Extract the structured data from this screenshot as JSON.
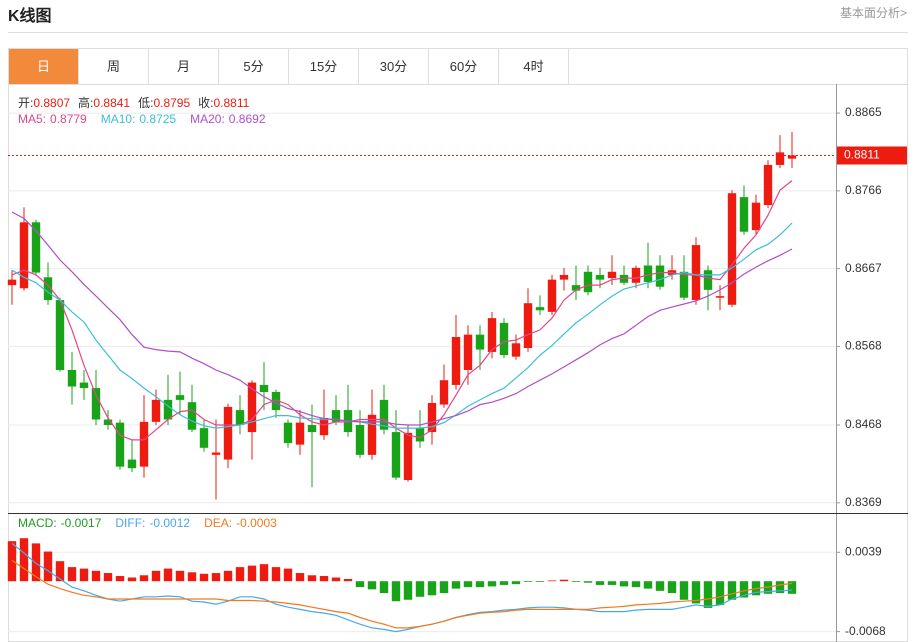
{
  "header": {
    "title": "K线图",
    "link": "基本面分析>"
  },
  "tabs": [
    "日",
    "周",
    "月",
    "5分",
    "15分",
    "30分",
    "60分",
    "4时"
  ],
  "active_tab": 0,
  "chart_data": [
    {
      "type": "candlestick",
      "ohlc_labels": [
        "开:",
        "高:",
        "低:",
        "收:"
      ],
      "up_color": "#ee1c10",
      "down_color": "#18a318",
      "ohlc": [
        [
          0.8646,
          0.8665,
          0.8621,
          0.8653
        ],
        [
          0.8642,
          0.8745,
          0.8639,
          0.8726
        ],
        [
          0.8726,
          0.8729,
          0.8659,
          0.8662
        ],
        [
          0.8656,
          0.8675,
          0.8621,
          0.8627
        ],
        [
          0.8627,
          0.863,
          0.8536,
          0.8538
        ],
        [
          0.8538,
          0.8561,
          0.8494,
          0.8517
        ],
        [
          0.8522,
          0.8538,
          0.85,
          0.8515
        ],
        [
          0.8515,
          0.8538,
          0.8468,
          0.8475
        ],
        [
          0.8475,
          0.8487,
          0.8462,
          0.8468
        ],
        [
          0.8471,
          0.8475,
          0.8411,
          0.8415
        ],
        [
          0.8424,
          0.8449,
          0.8408,
          0.8413
        ],
        [
          0.8415,
          0.8506,
          0.8401,
          0.8472
        ],
        [
          0.8472,
          0.8513,
          0.8468,
          0.85
        ],
        [
          0.85,
          0.8532,
          0.8468,
          0.8475
        ],
        [
          0.8506,
          0.8536,
          0.8481,
          0.85
        ],
        [
          0.8497,
          0.8519,
          0.8459,
          0.8462
        ],
        [
          0.8464,
          0.8475,
          0.8434,
          0.8439
        ],
        [
          0.843,
          0.8475,
          0.8373,
          0.8433
        ],
        [
          0.8424,
          0.8495,
          0.8413,
          0.8491
        ],
        [
          0.8487,
          0.8506,
          0.8456,
          0.8468
        ],
        [
          0.8459,
          0.8525,
          0.8424,
          0.8522
        ],
        [
          0.8519,
          0.8548,
          0.8487,
          0.851
        ],
        [
          0.851,
          0.8513,
          0.8477,
          0.8487
        ],
        [
          0.8471,
          0.8475,
          0.8439,
          0.8445
        ],
        [
          0.8443,
          0.8487,
          0.843,
          0.8471
        ],
        [
          0.8468,
          0.8494,
          0.8389,
          0.8459
        ],
        [
          0.8455,
          0.8513,
          0.8449,
          0.8477
        ],
        [
          0.8487,
          0.8506,
          0.8468,
          0.8472
        ],
        [
          0.8487,
          0.8519,
          0.8453,
          0.8459
        ],
        [
          0.8468,
          0.8487,
          0.8426,
          0.843
        ],
        [
          0.843,
          0.8513,
          0.8424,
          0.8481
        ],
        [
          0.85,
          0.8519,
          0.8456,
          0.8462
        ],
        [
          0.8459,
          0.8487,
          0.8398,
          0.8401
        ],
        [
          0.8398,
          0.8468,
          0.8396,
          0.8458
        ],
        [
          0.8464,
          0.8487,
          0.8439,
          0.8447
        ],
        [
          0.8459,
          0.8506,
          0.8443,
          0.8496
        ],
        [
          0.8494,
          0.8545,
          0.849,
          0.8525
        ],
        [
          0.8519,
          0.8608,
          0.8513,
          0.858
        ],
        [
          0.8538,
          0.8595,
          0.8519,
          0.8583
        ],
        [
          0.8583,
          0.8595,
          0.8538,
          0.8564
        ],
        [
          0.8561,
          0.8612,
          0.8553,
          0.8604
        ],
        [
          0.8598,
          0.8604,
          0.8553,
          0.8557
        ],
        [
          0.8555,
          0.8583,
          0.8551,
          0.8572
        ],
        [
          0.8566,
          0.8642,
          0.8561,
          0.8623
        ],
        [
          0.8618,
          0.8633,
          0.8608,
          0.8614
        ],
        [
          0.8612,
          0.8659,
          0.8608,
          0.8653
        ],
        [
          0.8653,
          0.8668,
          0.8639,
          0.8659
        ],
        [
          0.8646,
          0.8671,
          0.8627,
          0.8639
        ],
        [
          0.8663,
          0.8671,
          0.8633,
          0.8637
        ],
        [
          0.8659,
          0.8668,
          0.8642,
          0.8653
        ],
        [
          0.8655,
          0.8684,
          0.8646,
          0.8663
        ],
        [
          0.8659,
          0.8671,
          0.8646,
          0.8649
        ],
        [
          0.8649,
          0.8671,
          0.8642,
          0.8668
        ],
        [
          0.8671,
          0.87,
          0.8642,
          0.865
        ],
        [
          0.8671,
          0.8684,
          0.864,
          0.8644
        ],
        [
          0.8659,
          0.8684,
          0.8653,
          0.8665
        ],
        [
          0.8663,
          0.8684,
          0.8627,
          0.863
        ],
        [
          0.8627,
          0.8707,
          0.8621,
          0.8697
        ],
        [
          0.8665,
          0.8671,
          0.8614,
          0.864
        ],
        [
          0.863,
          0.8646,
          0.8614,
          0.8632
        ],
        [
          0.8621,
          0.8767,
          0.8618,
          0.8763
        ],
        [
          0.8758,
          0.8773,
          0.871,
          0.8714
        ],
        [
          0.8716,
          0.8761,
          0.871,
          0.8751
        ],
        [
          0.8748,
          0.8805,
          0.8744,
          0.8799
        ],
        [
          0.8799,
          0.8837,
          0.8795,
          0.8815
        ],
        [
          0.8807,
          0.8841,
          0.8795,
          0.8811
        ]
      ],
      "series": [
        {
          "name": "MA5:",
          "color": "#e2468a",
          "values": [
            0.8659,
            0.8665,
            0.8659,
            0.8646,
            0.8627,
            0.8589,
            0.8544,
            0.8506,
            0.8477,
            0.8455,
            0.8449,
            0.8449,
            0.8462,
            0.8475,
            0.8485,
            0.8487,
            0.8475,
            0.8468,
            0.8468,
            0.8468,
            0.8475,
            0.8494,
            0.85,
            0.8494,
            0.8481,
            0.8472,
            0.8468,
            0.8472,
            0.8472,
            0.8475,
            0.8475,
            0.8475,
            0.8464,
            0.8455,
            0.8452,
            0.8462,
            0.8481,
            0.8506,
            0.8532,
            0.8544,
            0.8564,
            0.8574,
            0.8576,
            0.8583,
            0.8589,
            0.8604,
            0.8627,
            0.864,
            0.8646,
            0.8646,
            0.8653,
            0.8655,
            0.8655,
            0.8659,
            0.8662,
            0.8662,
            0.8659,
            0.8659,
            0.8655,
            0.8653,
            0.8672,
            0.8693,
            0.871,
            0.8735,
            0.8767,
            0.8779
          ]
        },
        {
          "name": "MA10:",
          "color": "#3cbfd8",
          "values": [
            0.8665,
            0.8656,
            0.8649,
            0.8637,
            0.8627,
            0.8612,
            0.8599,
            0.8576,
            0.8557,
            0.8538,
            0.8527,
            0.8515,
            0.8504,
            0.8492,
            0.8481,
            0.8473,
            0.8467,
            0.8464,
            0.8466,
            0.8468,
            0.8472,
            0.8476,
            0.848,
            0.848,
            0.8477,
            0.8476,
            0.8475,
            0.8475,
            0.8473,
            0.8472,
            0.8469,
            0.8467,
            0.8464,
            0.8464,
            0.8464,
            0.8466,
            0.8471,
            0.8481,
            0.8492,
            0.85,
            0.8508,
            0.8515,
            0.8528,
            0.8541,
            0.8557,
            0.8569,
            0.8584,
            0.8598,
            0.8609,
            0.8621,
            0.8632,
            0.8641,
            0.8645,
            0.8649,
            0.8653,
            0.8659,
            0.8662,
            0.8659,
            0.8659,
            0.8659,
            0.8668,
            0.8679,
            0.8691,
            0.8698,
            0.871,
            0.8725
          ]
        },
        {
          "name": "MA20:",
          "color": "#b04fc6",
          "values": [
            0.8739,
            0.8731,
            0.8715,
            0.8697,
            0.8678,
            0.8663,
            0.8647,
            0.8632,
            0.8617,
            0.8602,
            0.8583,
            0.8567,
            0.8564,
            0.8562,
            0.8561,
            0.8553,
            0.8546,
            0.8538,
            0.8532,
            0.8525,
            0.8514,
            0.8504,
            0.8496,
            0.8489,
            0.8485,
            0.848,
            0.8476,
            0.8475,
            0.8473,
            0.8472,
            0.8472,
            0.8472,
            0.8469,
            0.8468,
            0.8468,
            0.8472,
            0.8476,
            0.848,
            0.8486,
            0.8494,
            0.8497,
            0.8502,
            0.8508,
            0.8517,
            0.8525,
            0.8533,
            0.8542,
            0.8551,
            0.856,
            0.857,
            0.8578,
            0.8584,
            0.8595,
            0.8606,
            0.8614,
            0.8618,
            0.8622,
            0.8626,
            0.8632,
            0.864,
            0.8649,
            0.866,
            0.8669,
            0.8677,
            0.8684,
            0.8692
          ]
        }
      ],
      "ylim": [
        0.8356,
        0.8902
      ],
      "yticks": [
        0.8865,
        0.8766,
        0.8667,
        0.8568,
        0.8468,
        0.8369
      ],
      "grid": true,
      "last_price_line": true
    },
    {
      "type": "macd",
      "up_color": "#ee1c10",
      "down_color": "#18a318",
      "series": [
        {
          "name": "MACD:",
          "type": "bar",
          "color": "#1f9b1f",
          "values": [
            0.0054,
            0.0058,
            0.0051,
            0.004,
            0.0027,
            0.0019,
            0.0017,
            0.0014,
            0.0011,
            0.0007,
            0.0005,
            0.0008,
            0.0014,
            0.0017,
            0.0014,
            0.0012,
            0.001,
            0.0011,
            0.0014,
            0.0019,
            0.0021,
            0.0023,
            0.0019,
            0.0017,
            0.0011,
            0.0008,
            0.0007,
            0.0005,
            0.0003,
            -0.0008,
            -0.0011,
            -0.0016,
            -0.0027,
            -0.0025,
            -0.0021,
            -0.0019,
            -0.0016,
            -0.001,
            -0.0008,
            -0.0008,
            -0.0007,
            -0.0005,
            -0.0004,
            -0.0001,
            -0.0001,
            0.0001,
            0.0002,
            -0.0001,
            -0.0002,
            -0.0005,
            -0.0005,
            -0.0007,
            -0.0008,
            -0.001,
            -0.0013,
            -0.0016,
            -0.0025,
            -0.003,
            -0.0036,
            -0.0032,
            -0.0025,
            -0.0022,
            -0.0019,
            -0.0017,
            -0.0016,
            -0.0017
          ]
        },
        {
          "name": "DIFF:",
          "type": "line",
          "color": "#4aa8e8",
          "values": [
            0.0051,
            0.0038,
            0.0024,
            0.0014,
            0.0003,
            -0.0008,
            -0.0013,
            -0.0019,
            -0.0024,
            -0.0027,
            -0.0024,
            -0.0021,
            -0.0021,
            -0.002,
            -0.0021,
            -0.0027,
            -0.0028,
            -0.0031,
            -0.0027,
            -0.0021,
            -0.0021,
            -0.0024,
            -0.0031,
            -0.0035,
            -0.0038,
            -0.0041,
            -0.0043,
            -0.0046,
            -0.0052,
            -0.0058,
            -0.0063,
            -0.0065,
            -0.0068,
            -0.0065,
            -0.0061,
            -0.0058,
            -0.0054,
            -0.0049,
            -0.0045,
            -0.0042,
            -0.0041,
            -0.0039,
            -0.0038,
            -0.0036,
            -0.0035,
            -0.0035,
            -0.0036,
            -0.0038,
            -0.0039,
            -0.0041,
            -0.0041,
            -0.0041,
            -0.0039,
            -0.0038,
            -0.0038,
            -0.0038,
            -0.0035,
            -0.0032,
            -0.0034,
            -0.0032,
            -0.0024,
            -0.0019,
            -0.0015,
            -0.0014,
            -0.0013,
            -0.0012
          ]
        },
        {
          "name": "DEA:",
          "type": "line",
          "color": "#f07a1e",
          "values": [
            0.0028,
            0.0017,
            0.0006,
            -0.0004,
            -0.001,
            -0.0015,
            -0.0019,
            -0.0021,
            -0.0024,
            -0.0024,
            -0.0024,
            -0.0024,
            -0.0024,
            -0.0024,
            -0.0024,
            -0.0024,
            -0.0024,
            -0.0024,
            -0.0026,
            -0.0026,
            -0.0026,
            -0.0027,
            -0.0028,
            -0.003,
            -0.0032,
            -0.0035,
            -0.0038,
            -0.0041,
            -0.0043,
            -0.0049,
            -0.0054,
            -0.0058,
            -0.0063,
            -0.0063,
            -0.0061,
            -0.0058,
            -0.0054,
            -0.0049,
            -0.0046,
            -0.0043,
            -0.0042,
            -0.0041,
            -0.0039,
            -0.0038,
            -0.0038,
            -0.0038,
            -0.0038,
            -0.0038,
            -0.0038,
            -0.0036,
            -0.0035,
            -0.0034,
            -0.0032,
            -0.0031,
            -0.003,
            -0.0028,
            -0.0027,
            -0.0026,
            -0.0024,
            -0.0021,
            -0.0017,
            -0.0013,
            -0.001,
            -0.0008,
            -0.0005,
            -0.0003
          ]
        }
      ],
      "ylim": [
        -0.0082,
        0.0092
      ],
      "yticks": [
        0.0039,
        -0.0068
      ],
      "grid": true
    }
  ]
}
